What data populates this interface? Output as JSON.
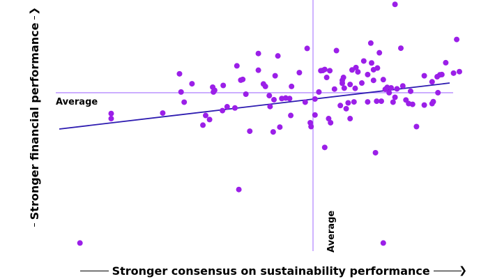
{
  "chart_data": {
    "type": "scatter",
    "xlabel": "Stronger consensus on sustainability performance",
    "ylabel": "Stronger financial performance",
    "xlim": [
      0,
      100
    ],
    "ylim": [
      0,
      100
    ],
    "grid": false,
    "axis_arrows": true,
    "average_x": 65,
    "average_y": 64,
    "average_x_label": "Average",
    "average_y_label": "Average",
    "trend_line": [
      [
        0,
        49
      ],
      [
        100,
        68
      ]
    ],
    "colors": {
      "points": "#9b1fe8",
      "average_lines": "#b58aff",
      "trend_line": "#2d1bb0"
    },
    "points": [
      [
        5.3,
        1.9
      ],
      [
        13.3,
        53.3
      ],
      [
        13.3,
        55.4
      ],
      [
        26.5,
        55.6
      ],
      [
        30.8,
        71.8
      ],
      [
        31.2,
        64.3
      ],
      [
        32.0,
        60.1
      ],
      [
        34.0,
        67.7
      ],
      [
        36.8,
        50.6
      ],
      [
        37.5,
        54.6
      ],
      [
        38.5,
        52.9
      ],
      [
        39.3,
        66.3
      ],
      [
        39.5,
        64.3
      ],
      [
        39.8,
        65.0
      ],
      [
        41.8,
        56.6
      ],
      [
        42.0,
        67.0
      ],
      [
        43.0,
        58.2
      ],
      [
        45.0,
        57.7
      ],
      [
        45.5,
        75.1
      ],
      [
        46.0,
        24.0
      ],
      [
        46.5,
        69.2
      ],
      [
        47.0,
        69.5
      ],
      [
        47.8,
        63.4
      ],
      [
        48.8,
        48.1
      ],
      [
        51.0,
        80.2
      ],
      [
        51.0,
        73.3
      ],
      [
        52.3,
        67.6
      ],
      [
        52.8,
        66.6
      ],
      [
        53.8,
        62.8
      ],
      [
        54.0,
        58.3
      ],
      [
        55.0,
        61.1
      ],
      [
        54.8,
        47.8
      ],
      [
        55.3,
        71.0
      ],
      [
        56.0,
        79.2
      ],
      [
        56.5,
        49.8
      ],
      [
        57.0,
        61.6
      ],
      [
        58.0,
        61.8
      ],
      [
        59.0,
        61.6
      ],
      [
        59.5,
        66.6
      ],
      [
        59.3,
        54.6
      ],
      [
        61.5,
        72.3
      ],
      [
        63.0,
        60.1
      ],
      [
        63.5,
        82.3
      ],
      [
        64.3,
        51.6
      ],
      [
        64.5,
        50.0
      ],
      [
        65.5,
        54.8
      ],
      [
        65.5,
        61.4
      ],
      [
        66.5,
        64.3
      ],
      [
        67.0,
        73.1
      ],
      [
        67.5,
        73.2
      ],
      [
        68.0,
        41.4
      ],
      [
        68.0,
        73.6
      ],
      [
        68.5,
        70.3
      ],
      [
        69.0,
        53.3
      ],
      [
        69.3,
        73.1
      ],
      [
        69.5,
        51.6
      ],
      [
        70.5,
        65.5
      ],
      [
        71.0,
        81.4
      ],
      [
        72.0,
        58.7
      ],
      [
        72.5,
        67.9
      ],
      [
        73.0,
        65.9
      ],
      [
        72.5,
        69.1
      ],
      [
        72.8,
        70.3
      ],
      [
        73.5,
        57.4
      ],
      [
        74.0,
        59.8
      ],
      [
        74.5,
        67.4
      ],
      [
        75.0,
        73.4
      ],
      [
        74.5,
        53.3
      ],
      [
        75.5,
        60.2
      ],
      [
        75.8,
        65.8
      ],
      [
        76.5,
        72.6
      ],
      [
        76.0,
        74.4
      ],
      [
        77.5,
        68.0
      ],
      [
        78.0,
        77.1
      ],
      [
        79.0,
        60.2
      ],
      [
        79.8,
        84.5
      ],
      [
        79.0,
        71.5
      ],
      [
        80.0,
        76.3
      ],
      [
        80.5,
        73.5
      ],
      [
        80.5,
        69.1
      ],
      [
        81.3,
        60.5
      ],
      [
        81.0,
        39.2
      ],
      [
        81.5,
        74.2
      ],
      [
        82.5,
        60.5
      ],
      [
        82.0,
        80.5
      ],
      [
        83.0,
        69.4
      ],
      [
        83.5,
        65.4
      ],
      [
        84.0,
        66.2
      ],
      [
        84.5,
        64.0
      ],
      [
        85.0,
        66.0
      ],
      [
        85.5,
        60.1
      ],
      [
        86.0,
        62.1
      ],
      [
        86.5,
        65.6
      ],
      [
        87.5,
        82.4
      ],
      [
        88.0,
        66.8
      ],
      [
        88.8,
        61.0
      ],
      [
        89.5,
        59.5
      ],
      [
        90.0,
        64.6
      ],
      [
        90.5,
        59.2
      ],
      [
        91.5,
        50.0
      ],
      [
        93.5,
        71.0
      ],
      [
        93.5,
        58.9
      ],
      [
        95.5,
        59.5
      ],
      [
        95.5,
        68.5
      ],
      [
        95.8,
        60.3
      ],
      [
        97.0,
        64.0
      ],
      [
        96.8,
        70.6
      ],
      [
        97.5,
        71.4
      ],
      [
        98.0,
        71.5
      ],
      [
        99.0,
        76.4
      ],
      [
        101.0,
        72.1
      ],
      [
        101.8,
        86.0
      ],
      [
        102.5,
        72.7
      ],
      [
        86.0,
        100.5
      ],
      [
        83.0,
        1.9
      ]
    ]
  }
}
